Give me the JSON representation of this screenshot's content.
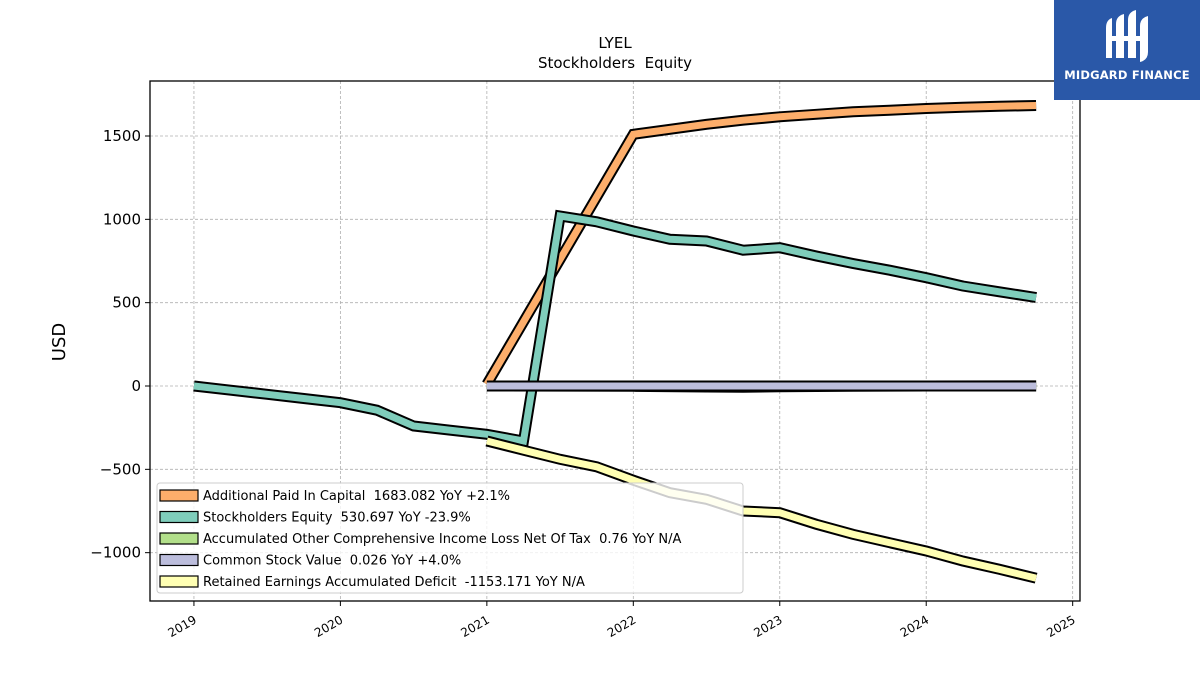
{
  "brand": {
    "name": "MIDGARD FINANCE",
    "bg_color": "#2a58a8"
  },
  "chart_data": {
    "type": "line",
    "title": "LYEL",
    "subtitle": "Stockholders  Equity",
    "xlabel": "",
    "ylabel": "USD",
    "xlim": [
      2018.7,
      2025.05
    ],
    "ylim": [
      -1290,
      1830
    ],
    "x_ticks": [
      2019,
      2020,
      2021,
      2022,
      2023,
      2024,
      2025
    ],
    "x_tick_labels": [
      "2019",
      "2020",
      "2021",
      "2022",
      "2023",
      "2024",
      "2025"
    ],
    "y_ticks": [
      -1000,
      -500,
      0,
      500,
      1000,
      1500
    ],
    "y_tick_labels": [
      "−1000",
      "−500",
      "0",
      "500",
      "1000",
      "1500"
    ],
    "grid": true,
    "legend_position": "lower-left",
    "series": [
      {
        "name": "Additional Paid In Capital  1683.082 YoY +2.1%",
        "color": "#fdae6b",
        "points": [
          [
            2021.0,
            10
          ],
          [
            2022.0,
            1510
          ],
          [
            2022.25,
            1540
          ],
          [
            2022.5,
            1570
          ],
          [
            2022.75,
            1595
          ],
          [
            2023.0,
            1615
          ],
          [
            2023.25,
            1630
          ],
          [
            2023.5,
            1645
          ],
          [
            2023.75,
            1655
          ],
          [
            2024.0,
            1665
          ],
          [
            2024.25,
            1672
          ],
          [
            2024.5,
            1678
          ],
          [
            2024.75,
            1683
          ]
        ]
      },
      {
        "name": "Stockholders Equity  530.697 YoY -23.9%",
        "color": "#7fcdbb",
        "points": [
          [
            2019.0,
            0
          ],
          [
            2019.25,
            -25
          ],
          [
            2019.5,
            -50
          ],
          [
            2019.75,
            -75
          ],
          [
            2020.0,
            -100
          ],
          [
            2020.25,
            -145
          ],
          [
            2020.5,
            -240
          ],
          [
            2020.75,
            -265
          ],
          [
            2021.0,
            -290
          ],
          [
            2021.25,
            -330
          ],
          [
            2021.5,
            1020
          ],
          [
            2021.75,
            985
          ],
          [
            2022.0,
            930
          ],
          [
            2022.25,
            880
          ],
          [
            2022.5,
            870
          ],
          [
            2022.75,
            815
          ],
          [
            2023.0,
            830
          ],
          [
            2023.25,
            780
          ],
          [
            2023.5,
            735
          ],
          [
            2023.75,
            695
          ],
          [
            2024.0,
            650
          ],
          [
            2024.25,
            600
          ],
          [
            2024.5,
            565
          ],
          [
            2024.75,
            531
          ]
        ]
      },
      {
        "name": "Accumulated Other Comprehensive Income Loss Net Of Tax  0.76 YoY N/A",
        "color": "#b2df8a",
        "points": [
          [
            2021.0,
            0
          ],
          [
            2022.0,
            -2
          ],
          [
            2022.5,
            -6
          ],
          [
            2022.75,
            -8
          ],
          [
            2023.0,
            -5
          ],
          [
            2023.5,
            -2
          ],
          [
            2024.0,
            0
          ],
          [
            2024.75,
            0.76
          ]
        ]
      },
      {
        "name": "Common Stock Value  0.026 YoY +4.0%",
        "color": "#bcbddc",
        "points": [
          [
            2021.0,
            0
          ],
          [
            2021.5,
            0
          ],
          [
            2022.0,
            0
          ],
          [
            2022.5,
            0
          ],
          [
            2023.0,
            0
          ],
          [
            2023.5,
            0
          ],
          [
            2024.0,
            0
          ],
          [
            2024.75,
            0.026
          ]
        ]
      },
      {
        "name": "Retained Earnings Accumulated Deficit  -1153.171 YoY N/A",
        "color": "#ffffb3",
        "points": [
          [
            2021.0,
            -330
          ],
          [
            2021.25,
            -385
          ],
          [
            2021.5,
            -440
          ],
          [
            2021.75,
            -485
          ],
          [
            2022.0,
            -565
          ],
          [
            2022.25,
            -640
          ],
          [
            2022.5,
            -680
          ],
          [
            2022.75,
            -750
          ],
          [
            2023.0,
            -760
          ],
          [
            2023.25,
            -830
          ],
          [
            2023.5,
            -890
          ],
          [
            2023.75,
            -940
          ],
          [
            2024.0,
            -990
          ],
          [
            2024.25,
            -1050
          ],
          [
            2024.5,
            -1100
          ],
          [
            2024.75,
            -1153
          ]
        ]
      }
    ]
  }
}
